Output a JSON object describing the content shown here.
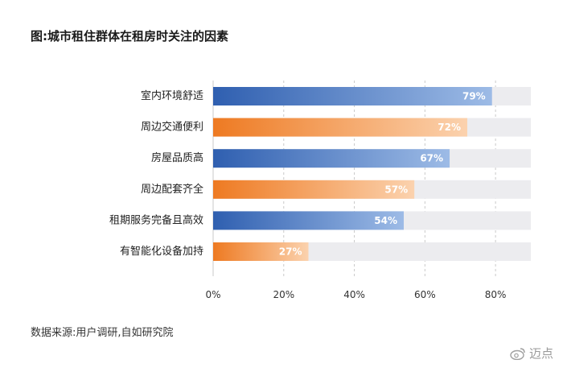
{
  "title": "图:城市租住群体在租房时关注的因素",
  "source": "数据来源:用户调研,自如研究院",
  "watermark": "迈点",
  "colors": {
    "blue": "#2f5fb0",
    "blue_light": "#9dbbe6",
    "orange": "#ee7a22",
    "orange_light": "#fbd2ae",
    "track": "#ececef"
  },
  "chart_data": {
    "type": "bar",
    "orientation": "horizontal",
    "categories": [
      "室内环境舒适",
      "周边交通便利",
      "房屋品质高",
      "周边配套齐全",
      "租期服务完备且高效",
      "有智能化设备加持"
    ],
    "values": [
      79,
      72,
      67,
      57,
      54,
      27
    ],
    "value_labels": [
      "79%",
      "72%",
      "67%",
      "57%",
      "54%",
      "27%"
    ],
    "bar_colors": [
      "blue",
      "orange",
      "blue",
      "orange",
      "blue",
      "orange"
    ],
    "xlim": [
      0,
      90
    ],
    "xticks": [
      0,
      20,
      40,
      60,
      80
    ],
    "xtick_labels": [
      "0%",
      "20%",
      "40%",
      "60%",
      "80%"
    ],
    "grid": "vertical dashed",
    "background_track": true
  }
}
